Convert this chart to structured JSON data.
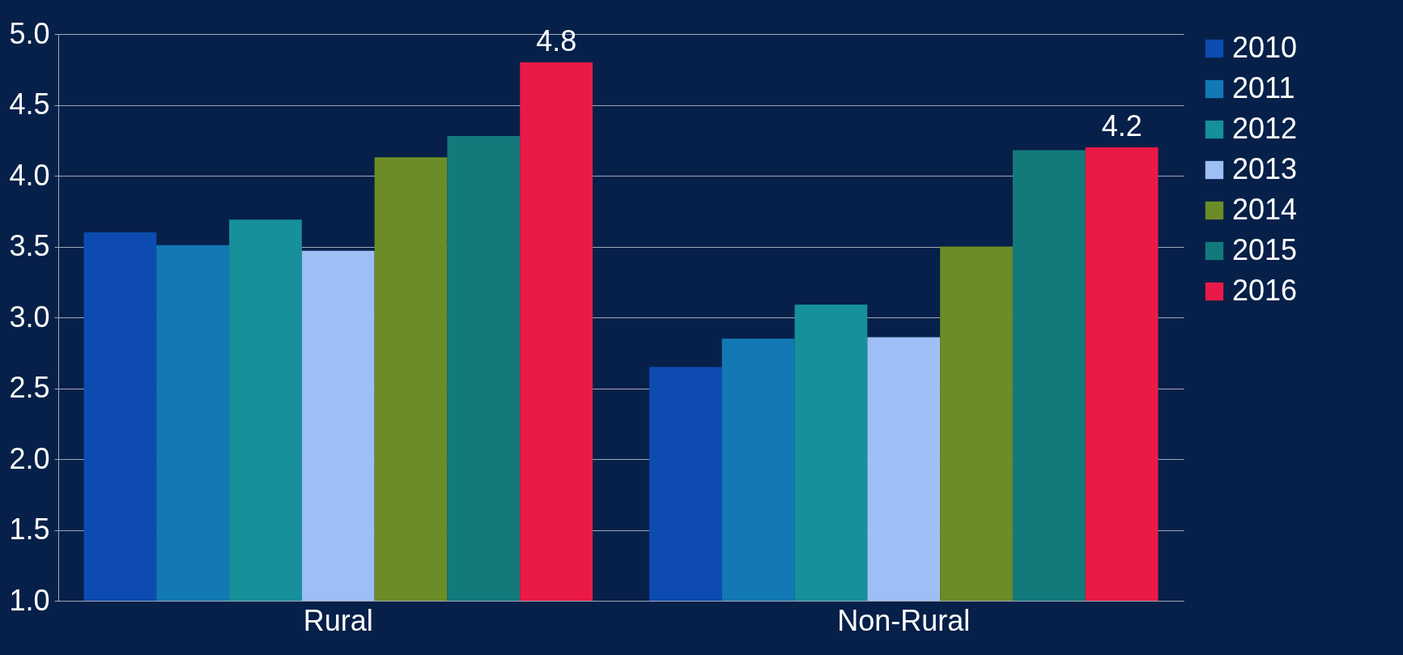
{
  "chart_data": {
    "type": "bar",
    "categories": [
      "Rural",
      "Non-Rural"
    ],
    "ylim": [
      1,
      5
    ],
    "yticks": [
      {
        "value": 1,
        "label": "1.0"
      },
      {
        "value": 1.5,
        "label": "1.5"
      },
      {
        "value": 2,
        "label": "2.0"
      },
      {
        "value": 2.5,
        "label": "2.5"
      },
      {
        "value": 3,
        "label": "3.0"
      },
      {
        "value": 3.5,
        "label": "3.5"
      },
      {
        "value": 4,
        "label": "4.0"
      },
      {
        "value": 4.5,
        "label": "4.5"
      },
      {
        "value": 5,
        "label": "5.0"
      }
    ],
    "grid": "y",
    "legend": "right",
    "series": [
      {
        "name": "2010",
        "color": "#0d4bb0",
        "values": [
          3.6,
          2.65
        ]
      },
      {
        "name": "2011",
        "color": "#1279b5",
        "values": [
          3.51,
          2.85
        ]
      },
      {
        "name": "2012",
        "color": "#16909a",
        "values": [
          3.69,
          3.09
        ]
      },
      {
        "name": "2013",
        "color": "#9dbff5",
        "values": [
          3.47,
          2.86
        ]
      },
      {
        "name": "2014",
        "color": "#6b8c26",
        "values": [
          4.13,
          3.5
        ]
      },
      {
        "name": "2015",
        "color": "#137a7c",
        "values": [
          4.28,
          4.18
        ]
      },
      {
        "name": "2016",
        "color": "#ea1a48",
        "values": [
          4.8,
          4.2
        ],
        "value_labels": [
          "4.8",
          "4.2"
        ]
      }
    ]
  }
}
